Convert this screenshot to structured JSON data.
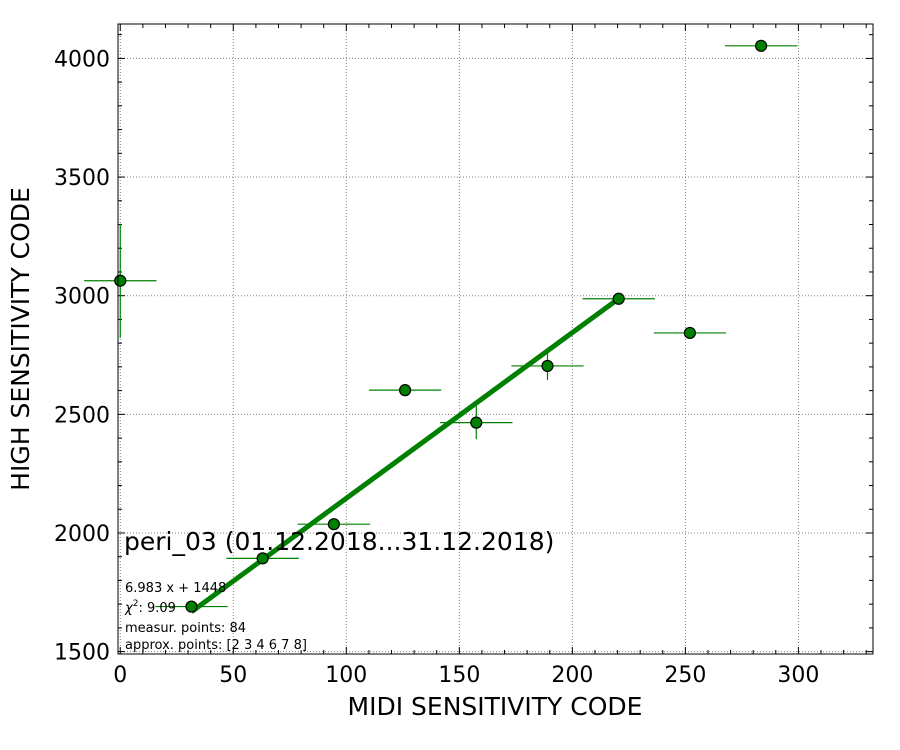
{
  "chart_data": {
    "type": "scatter",
    "xlabel": "MIDI SENSITIVITY CODE",
    "ylabel": "HIGH SENSITIVITY CODE",
    "xlim": [
      -1,
      333
    ],
    "ylim": [
      1490,
      4145
    ],
    "x_ticks": [
      0,
      50,
      100,
      150,
      200,
      250,
      300
    ],
    "y_ticks": [
      1500,
      2000,
      2500,
      3000,
      3500,
      4000
    ],
    "x_minor_step": 10,
    "y_minor_step": 100,
    "grid": true,
    "colors": {
      "series": "#008000",
      "marker_edge": "#000000"
    },
    "points": [
      {
        "x": 0,
        "y": 3063,
        "xerr": 16,
        "yerr": 240
      },
      {
        "x": 31.5,
        "y": 1690,
        "xerr": 16,
        "yerr": 0
      },
      {
        "x": 63,
        "y": 1893,
        "xerr": 16,
        "yerr": 0
      },
      {
        "x": 94.5,
        "y": 2037,
        "xerr": 16,
        "yerr": 0
      },
      {
        "x": 126,
        "y": 2602,
        "xerr": 16,
        "yerr": 0
      },
      {
        "x": 157.5,
        "y": 2465,
        "xerr": 16,
        "yerr": 70
      },
      {
        "x": 189,
        "y": 2704,
        "xerr": 16,
        "yerr": 60
      },
      {
        "x": 220.5,
        "y": 2987,
        "xerr": 16,
        "yerr": 0
      },
      {
        "x": 252,
        "y": 2843,
        "xerr": 16,
        "yerr": 0
      },
      {
        "x": 283.5,
        "y": 4053,
        "xerr": 16,
        "yerr": 0
      }
    ],
    "fit_line": {
      "slope": 6.983,
      "intercept": 1448,
      "x_range": [
        31.5,
        220.5
      ]
    },
    "annotations": {
      "title": "peri_03 (01.12.2018...31.12.2018)",
      "equation": "6.983 x + 1448",
      "chi2_label": "χ",
      "chi2_sup": "2",
      "chi2_value": ": 9.09",
      "measur_points": "measur. points: 84",
      "approx_points": "approx. points: [2 3 4 6 7 8]"
    }
  }
}
